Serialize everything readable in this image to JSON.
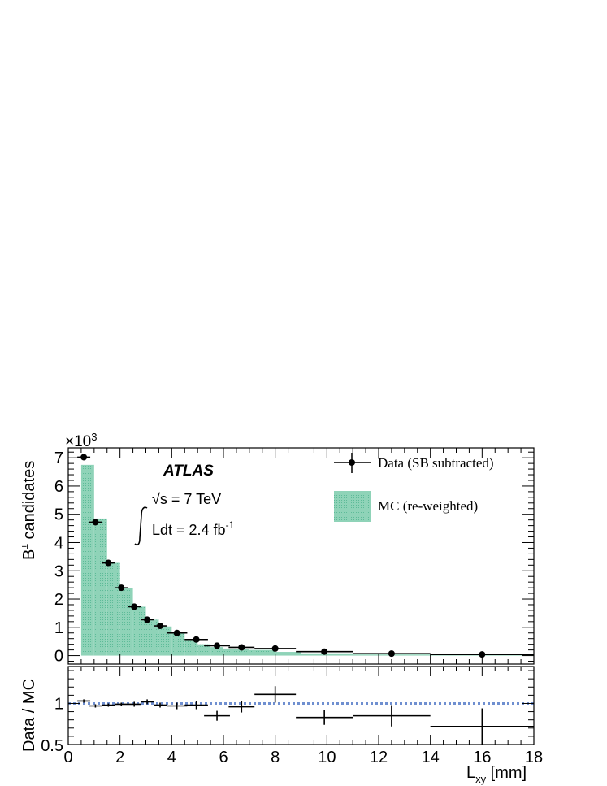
{
  "chart_data": [
    {
      "type": "bar",
      "panel": "main",
      "title": "",
      "ylabel": "B± candidates",
      "ylabel_main": "B",
      "ylabel_sup": "±",
      "ylabel_rest": " candidates",
      "y_multiplier": "×10",
      "y_multiplier_exp": "3",
      "ylim": [
        -0.3,
        7.35
      ],
      "xlim": [
        0,
        18
      ],
      "yticks": [
        0,
        1,
        2,
        3,
        4,
        5,
        6,
        7
      ],
      "bin_edges": [
        0.5,
        1.0,
        1.5,
        2.0,
        2.5,
        3.0,
        3.5,
        4.0,
        4.5,
        5.0,
        5.5,
        6.0,
        6.5,
        7.0,
        8.0,
        9.0,
        11.0,
        14.0,
        18.0
      ],
      "mc_values": [
        6.75,
        4.85,
        3.28,
        2.4,
        1.73,
        1.27,
        1.03,
        0.8,
        0.58,
        0.4,
        0.3,
        0.25,
        0.22,
        0.2,
        0.13,
        0.08,
        0.04,
        0.02
      ],
      "data_points": [
        {
          "x": 0.6,
          "y": 7.02,
          "xerr": 0.25,
          "yerr": 0.08
        },
        {
          "x": 1.05,
          "y": 4.72,
          "xerr": 0.25,
          "yerr": 0.07
        },
        {
          "x": 1.55,
          "y": 3.28,
          "xerr": 0.25,
          "yerr": 0.06
        },
        {
          "x": 2.05,
          "y": 2.4,
          "xerr": 0.25,
          "yerr": 0.05
        },
        {
          "x": 2.55,
          "y": 1.73,
          "xerr": 0.25,
          "yerr": 0.05
        },
        {
          "x": 3.05,
          "y": 1.27,
          "xerr": 0.25,
          "yerr": 0.04
        },
        {
          "x": 3.55,
          "y": 1.05,
          "xerr": 0.25,
          "yerr": 0.04
        },
        {
          "x": 4.2,
          "y": 0.8,
          "xerr": 0.4,
          "yerr": 0.04
        },
        {
          "x": 4.95,
          "y": 0.57,
          "xerr": 0.45,
          "yerr": 0.03
        },
        {
          "x": 5.75,
          "y": 0.35,
          "xerr": 0.5,
          "yerr": 0.03
        },
        {
          "x": 6.7,
          "y": 0.29,
          "xerr": 0.5,
          "yerr": 0.03
        },
        {
          "x": 8.0,
          "y": 0.25,
          "xerr": 0.8,
          "yerr": 0.03
        },
        {
          "x": 9.9,
          "y": 0.14,
          "xerr": 1.1,
          "yerr": 0.02
        },
        {
          "x": 12.5,
          "y": 0.07,
          "xerr": 1.5,
          "yerr": 0.02
        },
        {
          "x": 16.0,
          "y": 0.04,
          "xerr": 2.0,
          "yerr": 0.02
        }
      ],
      "legend": [
        {
          "label": "Data (SB subtracted)",
          "kind": "marker"
        },
        {
          "label": "MC (re-weighted)",
          "kind": "fill"
        }
      ],
      "legend_position": "top-right",
      "colors": {
        "mc_fill": "#8fd3b8",
        "mc_hatch": "#5dbb98",
        "data": "#000000"
      },
      "annotations": {
        "experiment": "ATLAS",
        "energy_sqrt": "√s = 7 TeV",
        "lumi_prefix": "Ldt = 2.4 fb",
        "lumi_exp": "-1"
      }
    },
    {
      "type": "scatter",
      "panel": "ratio",
      "ylabel": "Data / MC",
      "xlabel": "L_xy [mm]",
      "xlabel_main": "L",
      "xlabel_sub": "xy",
      "xlabel_unit": " [mm]",
      "xlim": [
        0,
        18
      ],
      "ylim": [
        0.5,
        1.45
      ],
      "xticks": [
        0,
        2,
        4,
        6,
        8,
        10,
        12,
        14,
        16,
        18
      ],
      "yticks": [
        1
      ],
      "ytick_bottom_label": "0.5",
      "ytick_labels": [
        "1"
      ],
      "reference_line": 1.0,
      "colors": {
        "reference": "#6f8fd0"
      },
      "points": [
        {
          "x": 0.6,
          "y": 1.03,
          "xerr": 0.25,
          "yerr": 0.02
        },
        {
          "x": 1.05,
          "y": 0.97,
          "xerr": 0.25,
          "yerr": 0.02
        },
        {
          "x": 1.55,
          "y": 0.98,
          "xerr": 0.25,
          "yerr": 0.02
        },
        {
          "x": 2.05,
          "y": 0.99,
          "xerr": 0.25,
          "yerr": 0.02
        },
        {
          "x": 2.55,
          "y": 0.99,
          "xerr": 0.25,
          "yerr": 0.03
        },
        {
          "x": 3.05,
          "y": 1.02,
          "xerr": 0.25,
          "yerr": 0.03
        },
        {
          "x": 3.55,
          "y": 0.98,
          "xerr": 0.25,
          "yerr": 0.03
        },
        {
          "x": 4.2,
          "y": 0.97,
          "xerr": 0.4,
          "yerr": 0.04
        },
        {
          "x": 4.95,
          "y": 0.98,
          "xerr": 0.45,
          "yerr": 0.05
        },
        {
          "x": 5.75,
          "y": 0.85,
          "xerr": 0.5,
          "yerr": 0.06
        },
        {
          "x": 6.7,
          "y": 0.96,
          "xerr": 0.5,
          "yerr": 0.07
        },
        {
          "x": 8.0,
          "y": 1.11,
          "xerr": 0.8,
          "yerr": 0.1
        },
        {
          "x": 9.9,
          "y": 0.83,
          "xerr": 1.1,
          "yerr": 0.09
        },
        {
          "x": 12.5,
          "y": 0.85,
          "xerr": 1.5,
          "yerr": 0.13
        },
        {
          "x": 16.0,
          "y": 0.72,
          "xerr": 2.0,
          "yerr": 0.22
        }
      ]
    }
  ]
}
